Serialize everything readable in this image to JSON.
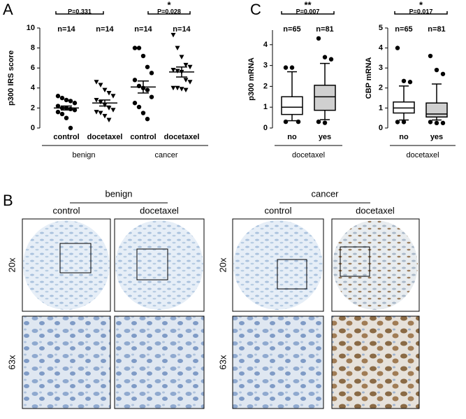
{
  "chart_data": [
    {
      "type": "strip",
      "panel_label": "A",
      "y_label": "p300 IRS score",
      "categories": [
        "control",
        "docetaxel",
        "control",
        "docetaxel"
      ],
      "groups": [
        "benign",
        "cancer"
      ],
      "n_labels": [
        "n=14",
        "n=14",
        "n=14",
        "n=14"
      ],
      "comparisons": [
        {
          "text": "P=0.331"
        },
        {
          "text": "P=0.028",
          "star": "*"
        }
      ],
      "ylim": [
        0,
        10
      ],
      "yticks": [
        0,
        2,
        4,
        6,
        8,
        10
      ],
      "series": [
        {
          "marker": "circle",
          "color": "#000000",
          "mean": 2.0,
          "sem": 0.2,
          "values": [
            3.2,
            3.0,
            2.8,
            2.7,
            2.5,
            2.2,
            2.0,
            2.0,
            1.9,
            1.8,
            1.6,
            1.4,
            1.0,
            0.0
          ]
        },
        {
          "marker": "triangle",
          "color": "#000000",
          "mean": 2.5,
          "sem": 0.3,
          "values": [
            4.6,
            4.3,
            3.8,
            3.5,
            3.2,
            2.8,
            2.6,
            2.3,
            2.0,
            1.8,
            1.6,
            1.5,
            1.2,
            0.8
          ]
        },
        {
          "marker": "circle",
          "color": "#000000",
          "mean": 4.1,
          "sem": 0.6,
          "values": [
            8.0,
            8.0,
            7.2,
            6.1,
            5.5,
            4.8,
            4.2,
            4.0,
            3.8,
            3.1,
            2.5,
            2.1,
            1.5,
            0.9
          ]
        },
        {
          "marker": "triangle",
          "color": "#000000",
          "mean": 5.6,
          "sem": 0.5,
          "values": [
            9.3,
            8.0,
            7.1,
            6.3,
            6.1,
            5.8,
            5.7,
            5.6,
            4.8,
            4.6,
            4.0,
            4.0,
            3.9,
            3.8
          ]
        }
      ]
    },
    {
      "type": "box",
      "panel_label": "C",
      "y_label": "p300 mRNA",
      "categories": [
        "no",
        "yes"
      ],
      "groups": [
        "docetaxel"
      ],
      "n_labels": [
        "n=65",
        "n=81"
      ],
      "comparisons": [
        {
          "text": "P=0.007",
          "star": "**"
        }
      ],
      "ylim": [
        0,
        4.7
      ],
      "yticks": [
        0,
        1,
        2,
        3,
        4
      ],
      "series": [
        {
          "color": "#ffffff",
          "min": 0.35,
          "q1": 0.65,
          "median": 1.0,
          "q3": 1.5,
          "max": 2.7,
          "outliers": [
            2.9,
            2.9,
            0.3,
            0.3
          ]
        },
        {
          "color": "#d0d0d0",
          "min": 0.4,
          "q1": 0.85,
          "median": 1.5,
          "q3": 2.05,
          "max": 3.1,
          "outliers": [
            4.3,
            3.4,
            3.3,
            0.3,
            0.25
          ]
        }
      ]
    },
    {
      "type": "box",
      "y_label": "CBP mRNA",
      "categories": [
        "no",
        "yes"
      ],
      "groups": [
        "docetaxel"
      ],
      "n_labels": [
        "n=65",
        "n=81"
      ],
      "comparisons": [
        {
          "text": "P=0.017",
          "star": "*"
        }
      ],
      "ylim": [
        0,
        5
      ],
      "yticks": [
        0,
        1,
        2,
        3,
        4,
        5
      ],
      "series": [
        {
          "color": "#ffffff",
          "min": 0.4,
          "q1": 0.75,
          "median": 1.0,
          "q3": 1.3,
          "max": 2.1,
          "outliers": [
            4.0,
            2.35,
            2.3,
            0.3,
            0.3
          ]
        },
        {
          "color": "#d0d0d0",
          "min": 0.4,
          "q1": 0.55,
          "median": 0.7,
          "q3": 1.25,
          "max": 2.2,
          "outliers": [
            3.6,
            2.9,
            2.7,
            0.3,
            0.25,
            0.25
          ]
        }
      ]
    }
  ],
  "panel_b": {
    "label": "B",
    "rows": [
      "20x",
      "63x"
    ],
    "groups": [
      {
        "title": "benign",
        "columns": [
          "control",
          "docetaxel"
        ]
      },
      {
        "title": "cancer",
        "columns": [
          "control",
          "docetaxel"
        ]
      }
    ]
  }
}
